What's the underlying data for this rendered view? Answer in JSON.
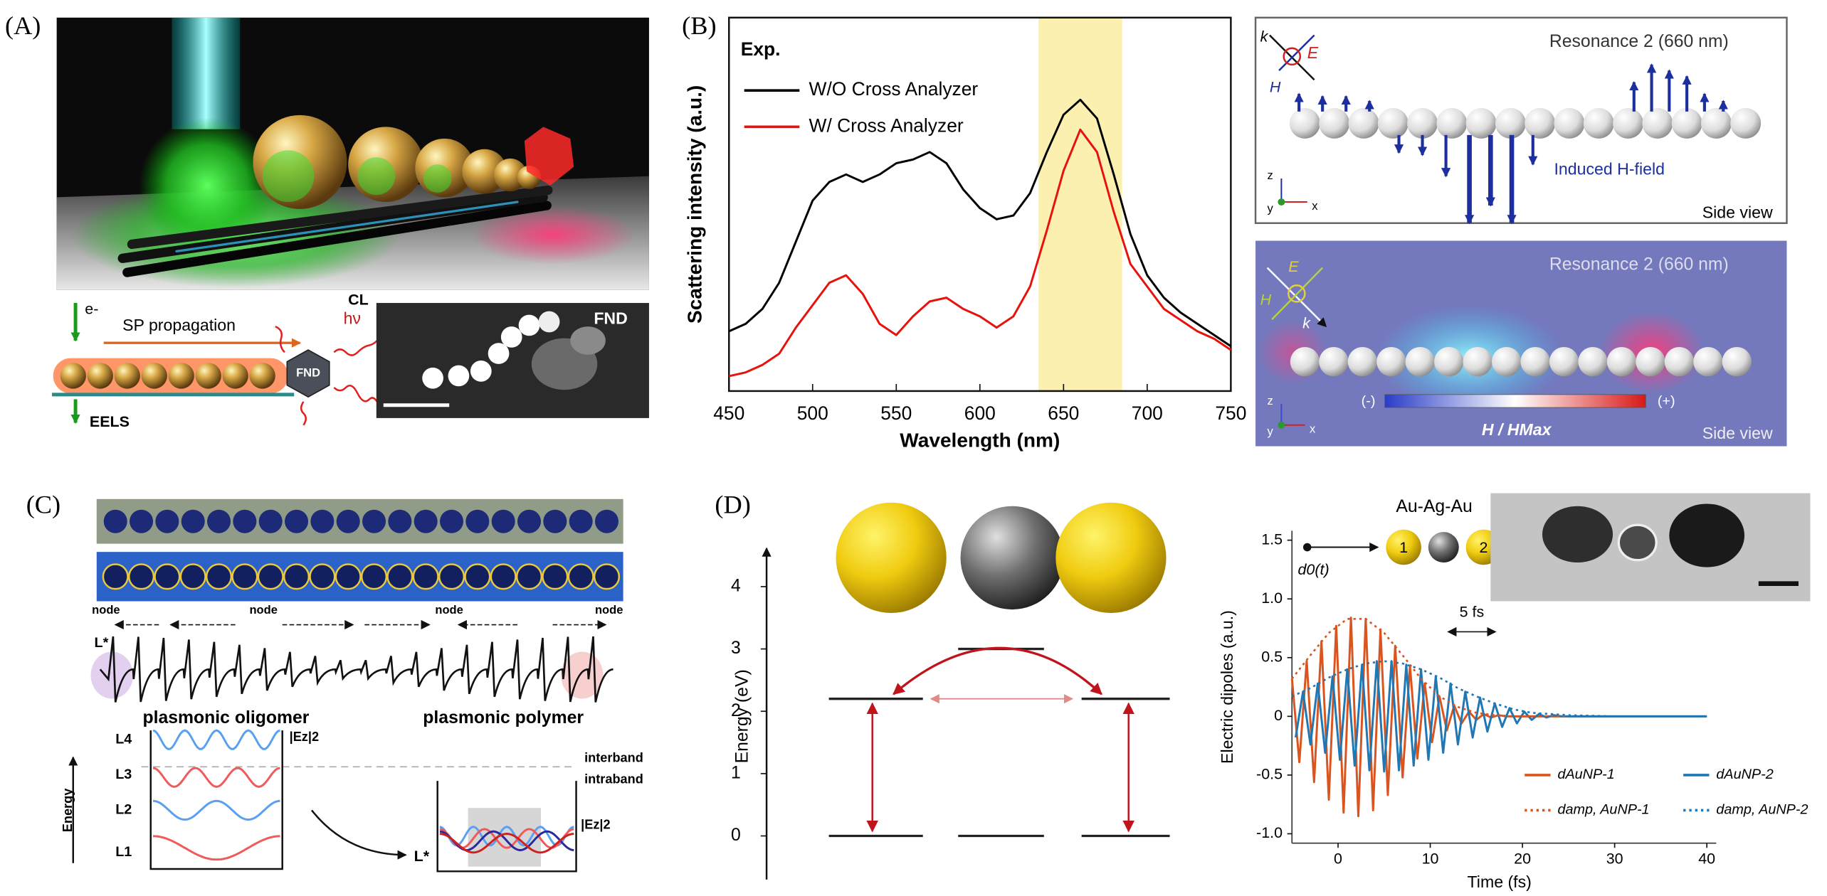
{
  "panels": {
    "A": {
      "label": "(A)",
      "e_minus": "e-",
      "sp_propagation": "SP propagation",
      "hv": "hν",
      "cl": "CL",
      "fnd_schematic": "FND",
      "eels": "EELS",
      "fnd_image": "FND"
    },
    "B": {
      "label": "(B)",
      "top": {
        "title": "Resonance 2 (660 nm)",
        "k": "k",
        "e": "E",
        "h": "H",
        "induced": "Induced H-field",
        "axes": [
          "z",
          "y",
          "x"
        ],
        "side_view": "Side view"
      },
      "bottom": {
        "title": "Resonance 2 (660 nm)",
        "e": "E",
        "h": "H",
        "k": "k",
        "minus": "(-)",
        "plus": "(+)",
        "colorbar": "H / HMax",
        "axes": [
          "z",
          "y",
          "x"
        ],
        "side_view": "Side view"
      }
    },
    "C": {
      "label": "(C)",
      "nodes": [
        "node",
        "node",
        "node",
        "node"
      ],
      "l_star_top": "L*",
      "oligomer": "plasmonic oligomer",
      "polymer": "plasmonic polymer",
      "levels": [
        "L4",
        "L3",
        "L2",
        "L1"
      ],
      "ez_left": "|Ez|2",
      "ez_right": "|Ez|2",
      "interband": "interband",
      "intraband": "intraband",
      "energy": "Energy",
      "l_star_bottom": "L*"
    },
    "D": {
      "label": "(D)",
      "au_ag_au": "Au-Ag-Au",
      "np1": "1",
      "np2": "2",
      "d0": "d0(t)"
    }
  },
  "chart_data": [
    {
      "type": "line",
      "annotation": "Exp.",
      "x_label": "Wavelength (nm)",
      "y_label": "Scattering intensity (a.u.)",
      "x": [
        450,
        460,
        470,
        480,
        490,
        500,
        510,
        520,
        530,
        540,
        550,
        560,
        570,
        580,
        590,
        600,
        610,
        620,
        630,
        640,
        650,
        660,
        670,
        680,
        690,
        700,
        710,
        720,
        730,
        740,
        750
      ],
      "series": [
        {
          "name": "W/O Cross Analyzer",
          "color": "#000000",
          "values": [
            0.16,
            0.18,
            0.22,
            0.29,
            0.4,
            0.51,
            0.56,
            0.58,
            0.56,
            0.58,
            0.61,
            0.62,
            0.64,
            0.61,
            0.54,
            0.49,
            0.46,
            0.47,
            0.53,
            0.64,
            0.74,
            0.78,
            0.73,
            0.58,
            0.42,
            0.31,
            0.25,
            0.21,
            0.18,
            0.15,
            0.12
          ]
        },
        {
          "name": "W/ Cross Analyzer",
          "color": "#e8120c",
          "values": [
            0.04,
            0.05,
            0.07,
            0.1,
            0.17,
            0.23,
            0.29,
            0.31,
            0.26,
            0.18,
            0.15,
            0.2,
            0.24,
            0.25,
            0.22,
            0.2,
            0.17,
            0.2,
            0.28,
            0.43,
            0.59,
            0.7,
            0.64,
            0.48,
            0.34,
            0.28,
            0.22,
            0.19,
            0.16,
            0.14,
            0.11
          ]
        }
      ],
      "xlim": [
        450,
        750
      ],
      "xticks": [
        450,
        500,
        550,
        600,
        650,
        700,
        750
      ],
      "ylim": [
        0,
        1
      ],
      "highlight_range": [
        635,
        685
      ],
      "highlight_color": "#fbf0b0",
      "legend": "upper left"
    },
    {
      "type": "level",
      "y_label": "Energy (eV)",
      "ylim": [
        -0.7,
        4.5
      ],
      "yticks": [
        0,
        1,
        2,
        3,
        4
      ],
      "series": [
        {
          "color": "#222222",
          "values": [
            2.2,
            3.0,
            2.2
          ]
        },
        {
          "color": "#222222",
          "values": [
            0,
            0,
            0
          ]
        }
      ]
    },
    {
      "type": "line",
      "x_label": "Time (fs)",
      "y_label": "Electric dipoles (a.u.)",
      "annotation": "5 fs",
      "xlim": [
        -5,
        40
      ],
      "xticks": [
        0,
        10,
        20,
        30,
        40
      ],
      "ylim": [
        -1,
        1.5
      ],
      "yticks": [
        {
          "value": -1,
          "label": "-1.0"
        },
        -0.5,
        0,
        0.5,
        {
          "value": 1,
          "label": "1.0"
        },
        1.5
      ],
      "legend": "lower right",
      "series": [
        {
          "name": "dAuNP-1",
          "color": "#d9541e",
          "style": "solid",
          "x": [
            -5.0,
            -4.2,
            -3.4,
            -2.6,
            -1.8,
            -1.0,
            -0.2,
            0.6,
            1.4,
            2.2,
            3.0,
            3.8,
            4.6,
            5.4,
            6.2,
            7.0,
            7.8,
            8.6,
            9.4,
            10.2,
            11.0,
            11.8,
            12.6,
            13.4,
            14.2,
            15.0,
            15.8,
            16.6,
            17.4,
            18.2,
            40
          ],
          "values": [
            0.32,
            -0.39,
            0.47,
            -0.56,
            0.64,
            -0.71,
            0.77,
            -0.82,
            0.84,
            -0.85,
            0.83,
            -0.8,
            0.74,
            -0.67,
            0.6,
            -0.52,
            0.43,
            -0.36,
            0.28,
            -0.22,
            0.17,
            -0.12,
            0.09,
            -0.06,
            0.04,
            -0.03,
            0.02,
            -0.01,
            0.01,
            0,
            0
          ]
        },
        {
          "name": "dAuNP-2",
          "color": "#1f77b4",
          "style": "solid",
          "x": [
            -4.6,
            -3.8,
            -3.0,
            -2.2,
            -1.4,
            -0.6,
            0.2,
            1.0,
            1.8,
            2.6,
            3.4,
            4.2,
            5.0,
            5.8,
            6.6,
            7.4,
            8.2,
            9.0,
            9.8,
            10.6,
            11.4,
            12.2,
            13.0,
            13.8,
            14.6,
            15.4,
            16.2,
            17.0,
            17.8,
            18.6,
            19.4,
            20.2,
            21.0,
            21.8,
            22.6,
            23.4,
            24.2,
            40
          ],
          "values": [
            -0.18,
            0.21,
            -0.24,
            0.28,
            -0.31,
            0.34,
            -0.37,
            0.4,
            -0.42,
            0.44,
            -0.46,
            0.47,
            -0.47,
            0.47,
            -0.46,
            0.44,
            -0.42,
            0.4,
            -0.37,
            0.34,
            -0.31,
            0.28,
            -0.24,
            0.21,
            -0.18,
            0.16,
            -0.13,
            0.11,
            -0.09,
            0.07,
            -0.06,
            0.04,
            -0.03,
            0.02,
            -0.01,
            0.01,
            0,
            0
          ]
        },
        {
          "name": "damp, AuNP-1",
          "color": "#d9541e",
          "style": "dotted",
          "x": [
            -5,
            -3,
            -1,
            1,
            3,
            5,
            7,
            9,
            11,
            13,
            15,
            17,
            19,
            25
          ],
          "values": [
            0.32,
            0.52,
            0.71,
            0.83,
            0.83,
            0.71,
            0.52,
            0.32,
            0.17,
            0.08,
            0.03,
            0.01,
            0,
            0
          ]
        },
        {
          "name": "damp, AuNP-2",
          "color": "#1f77b4",
          "style": "dotted",
          "x": [
            -5,
            -3,
            -1,
            1,
            3,
            5,
            7,
            9,
            11,
            13,
            15,
            17,
            19,
            21,
            23,
            25,
            30
          ],
          "values": [
            0.17,
            0.24,
            0.33,
            0.4,
            0.45,
            0.47,
            0.45,
            0.4,
            0.33,
            0.24,
            0.17,
            0.11,
            0.06,
            0.03,
            0.02,
            0.01,
            0
          ]
        }
      ]
    }
  ]
}
